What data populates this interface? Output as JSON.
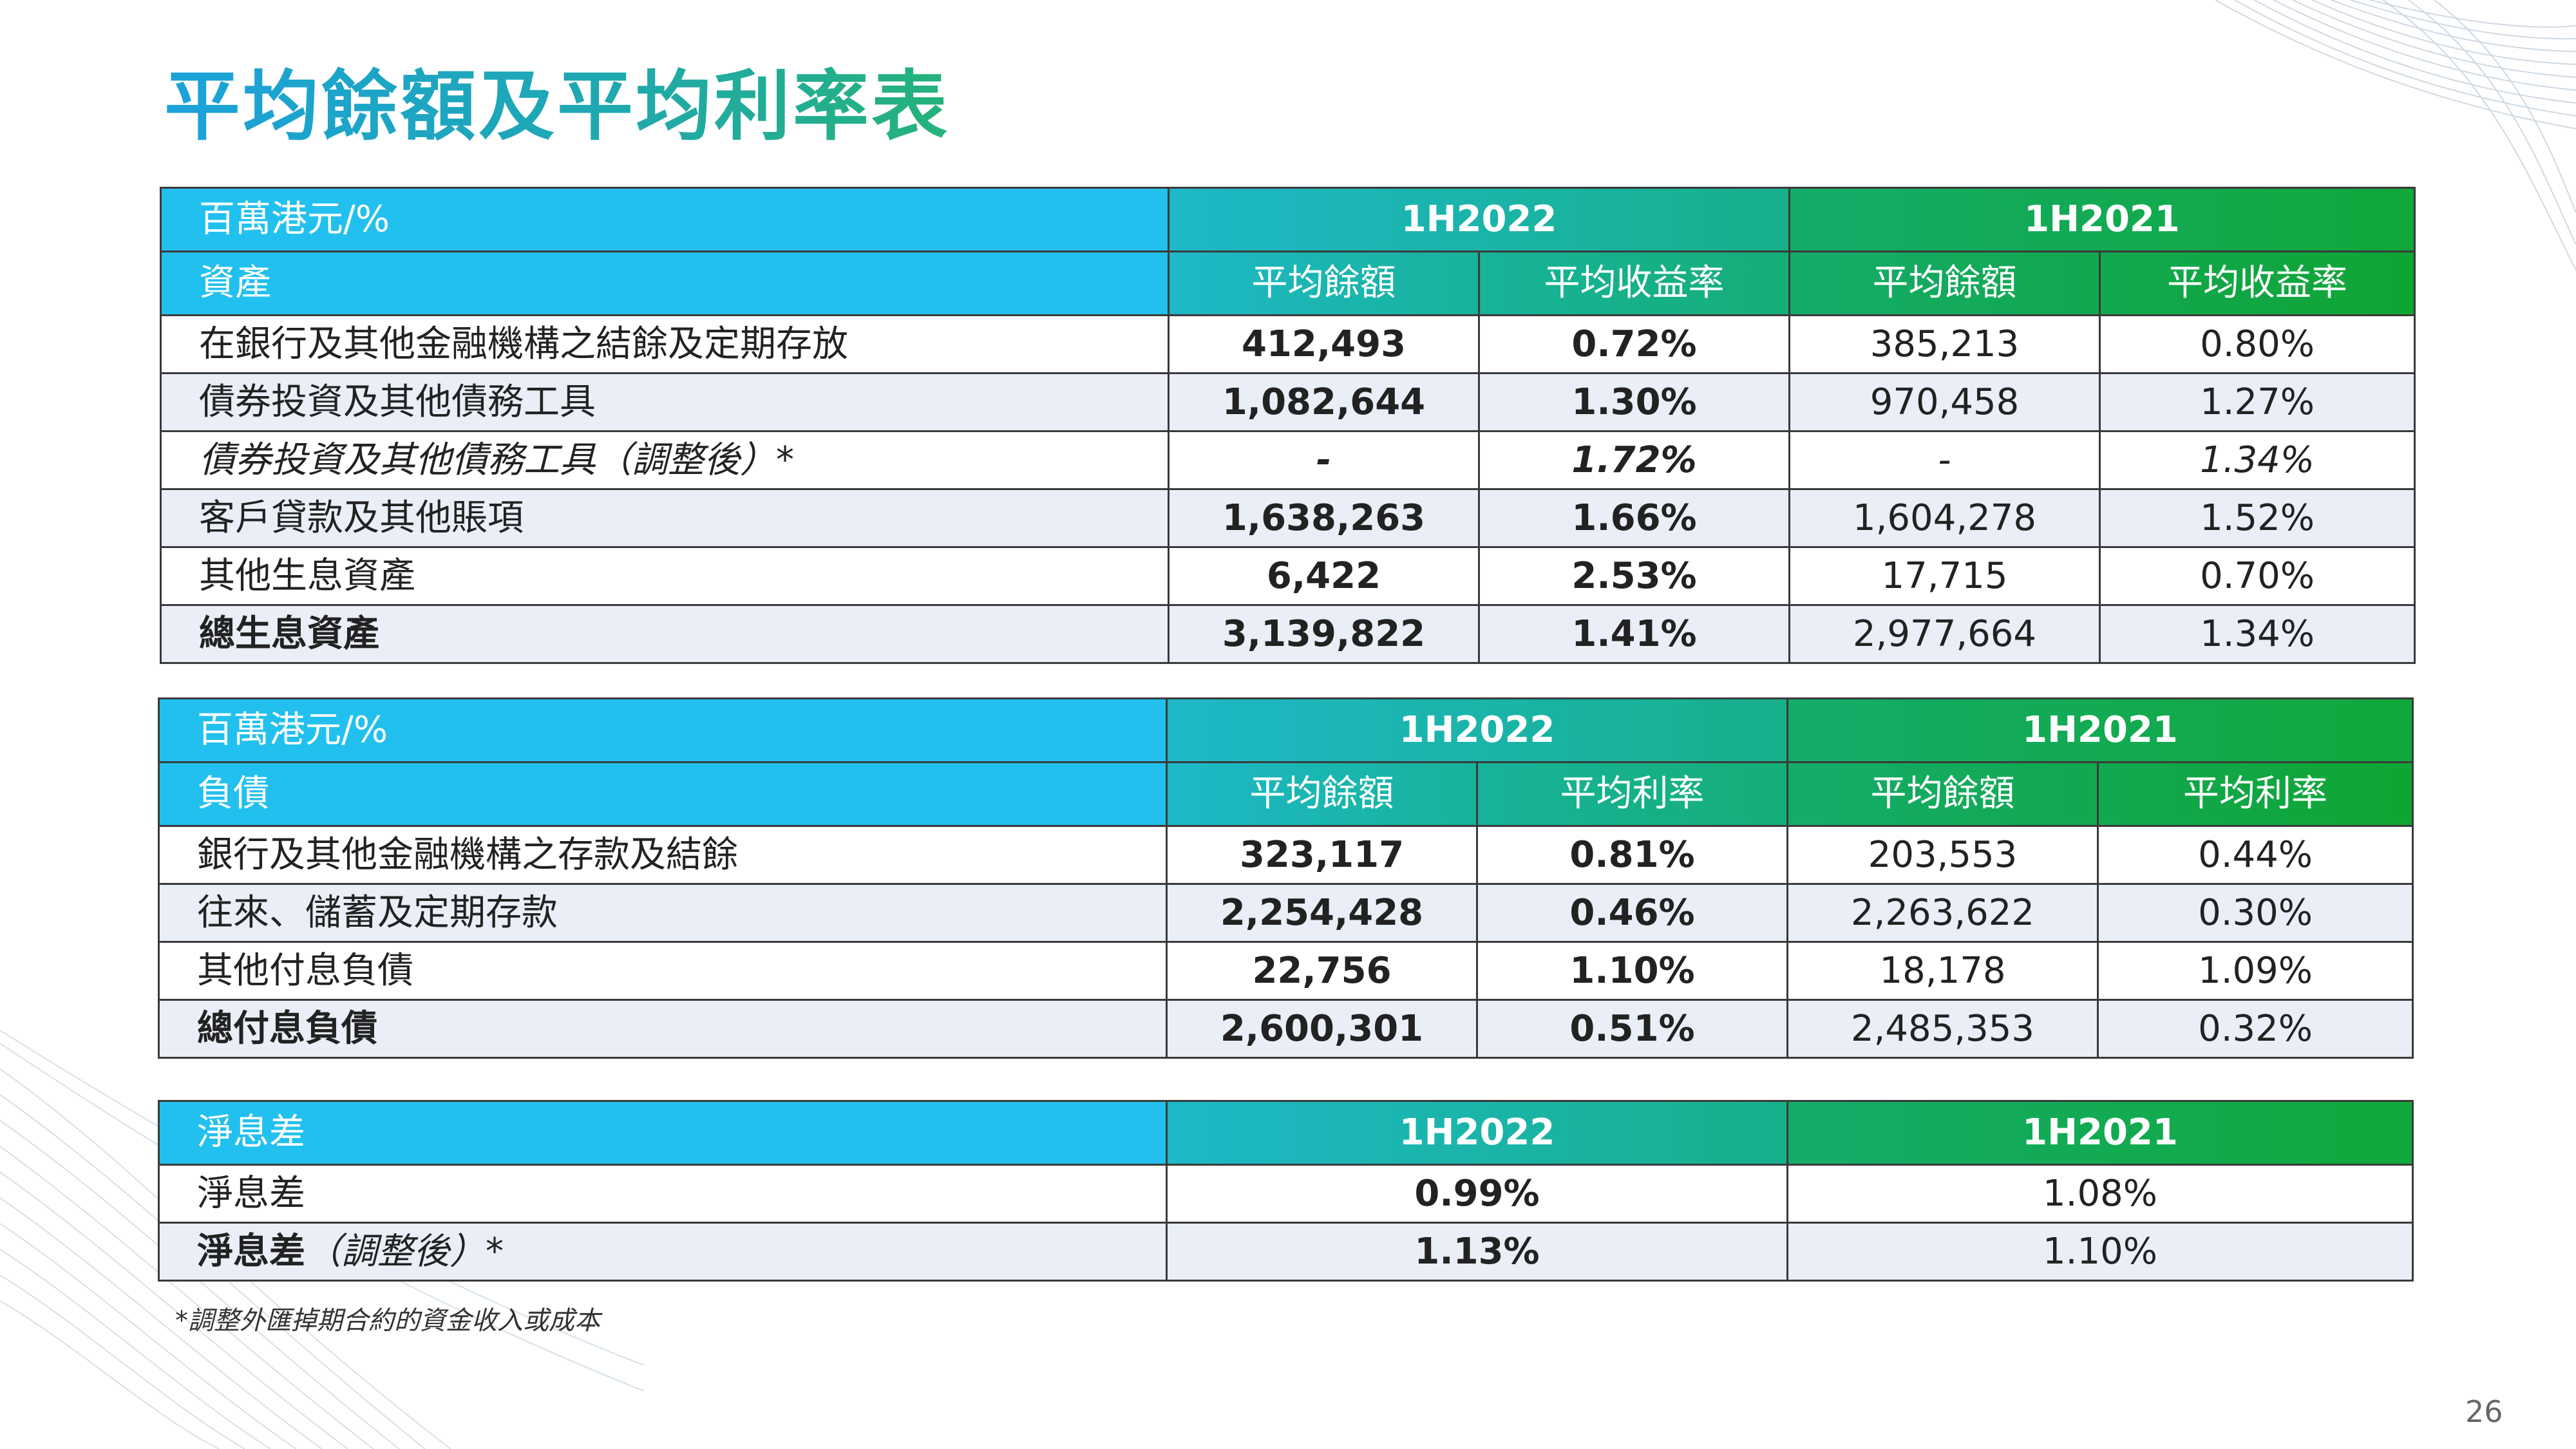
{
  "title": "平均餘額及平均利率表",
  "assets_table": {
    "header": {
      "label": "百萬港元/%",
      "period1": "1H2022",
      "period2": "1H2021"
    },
    "subheader": {
      "label": "資產",
      "col1": "平均餘額",
      "col2": "平均收益率",
      "col3": "平均餘額",
      "col4": "平均收益率"
    },
    "rows": [
      {
        "label": "在銀行及其他金融機構之結餘及定期存放",
        "v1": "412,493",
        "v2": "0.72%",
        "v3": "385,213",
        "v4": "0.80%"
      },
      {
        "label": "債券投資及其他債務工具",
        "v1": "1,082,644",
        "v2": "1.30%",
        "v3": "970,458",
        "v4": "1.27%"
      },
      {
        "label": "債券投資及其他債務工具（調整後）*",
        "v1": "-",
        "v2": "1.72%",
        "v3": "-",
        "v4": "1.34%"
      },
      {
        "label": "客戶貸款及其他賬項",
        "v1": "1,638,263",
        "v2": "1.66%",
        "v3": "1,604,278",
        "v4": "1.52%"
      },
      {
        "label": "其他生息資產",
        "v1": "6,422",
        "v2": "2.53%",
        "v3": "17,715",
        "v4": "0.70%"
      },
      {
        "label": "總生息資產",
        "v1": "3,139,822",
        "v2": "1.41%",
        "v3": "2,977,664",
        "v4": "1.34%"
      }
    ]
  },
  "liabilities_table": {
    "header": {
      "label": "百萬港元/%",
      "period1": "1H2022",
      "period2": "1H2021"
    },
    "subheader": {
      "label": "負債",
      "col1": "平均餘額",
      "col2": "平均利率",
      "col3": "平均餘額",
      "col4": "平均利率"
    },
    "rows": [
      {
        "label": "銀行及其他金融機構之存款及結餘",
        "v1": "323,117",
        "v2": "0.81%",
        "v3": "203,553",
        "v4": "0.44%"
      },
      {
        "label": "往來、儲蓄及定期存款",
        "v1": "2,254,428",
        "v2": "0.46%",
        "v3": "2,263,622",
        "v4": "0.30%"
      },
      {
        "label": "其他付息負債",
        "v1": "22,756",
        "v2": "1.10%",
        "v3": "18,178",
        "v4": "1.09%"
      },
      {
        "label": "總付息負債",
        "v1": "2,600,301",
        "v2": "0.51%",
        "v3": "2,485,353",
        "v4": "0.32%"
      }
    ]
  },
  "nim_table": {
    "header": {
      "label": "淨息差",
      "period1": "1H2022",
      "period2": "1H2021"
    },
    "rows": [
      {
        "label": "淨息差",
        "v1": "0.99%",
        "v2": "1.08%"
      },
      {
        "label_main": "淨息差",
        "label_suffix": "（調整後）*",
        "v1": "1.13%",
        "v2": "1.10%"
      }
    ]
  },
  "footnote": "*調整外匯掉期合約的資金收入或成本",
  "page_number": "26",
  "colors": {
    "header_blue": "#22c0ee",
    "header_green": "#10a83a",
    "row_alt": "#e9eef7",
    "title_start": "#1ba2dc",
    "title_end": "#25b27a"
  }
}
